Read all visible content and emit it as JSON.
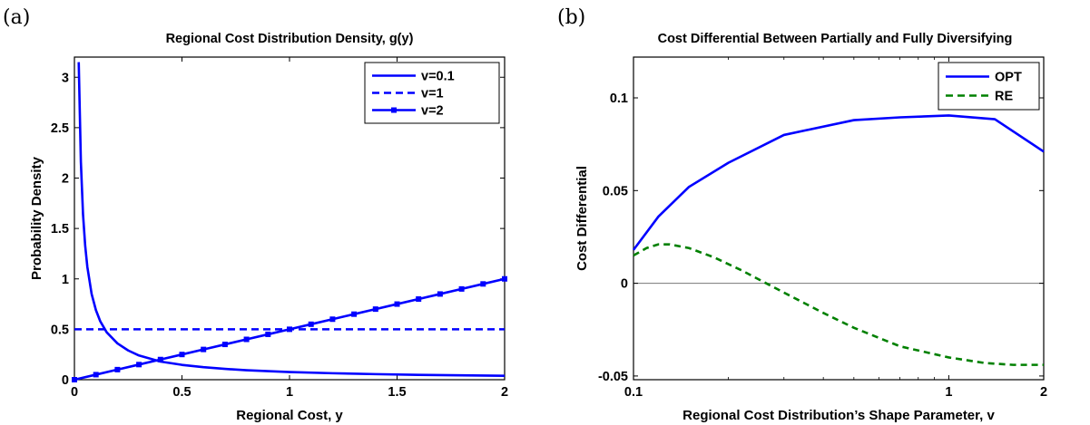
{
  "chart_data": [
    {
      "type": "line",
      "panel_label": "(a)",
      "title": "Regional Cost Distribution Density, g(y)",
      "xlabel": "Regional Cost,  y",
      "ylabel": "Probability Density",
      "xlim": [
        0,
        2
      ],
      "ylim": [
        0,
        3.2
      ],
      "xticks": [
        0,
        0.5,
        1,
        1.5,
        2
      ],
      "xtick_labels": [
        "0",
        "0.5",
        "1",
        "1.5",
        "2"
      ],
      "yticks": [
        0,
        0.5,
        1,
        1.5,
        2,
        2.5,
        3
      ],
      "ytick_labels": [
        "0",
        "0.5",
        "1",
        "1.5",
        "2",
        "2.5",
        "3"
      ],
      "grid": false,
      "legend_position": "top-right",
      "series": [
        {
          "name": "v=0.1",
          "color": "#0000ff",
          "style": "solid",
          "marker": "none",
          "x": [
            0.02,
            0.03,
            0.04,
            0.05,
            0.06,
            0.08,
            0.1,
            0.12,
            0.15,
            0.2,
            0.25,
            0.3,
            0.4,
            0.5,
            0.6,
            0.7,
            0.8,
            1.0,
            1.2,
            1.4,
            1.6,
            1.8,
            2.0
          ],
          "y": [
            3.15,
            2.16,
            1.64,
            1.33,
            1.12,
            0.85,
            0.69,
            0.58,
            0.47,
            0.36,
            0.29,
            0.24,
            0.18,
            0.147,
            0.124,
            0.107,
            0.094,
            0.076,
            0.064,
            0.055,
            0.048,
            0.043,
            0.039
          ]
        },
        {
          "name": "v=1",
          "color": "#0000ff",
          "style": "dashed",
          "marker": "none",
          "x": [
            0,
            2
          ],
          "y": [
            0.5,
            0.5
          ]
        },
        {
          "name": "v=2",
          "color": "#0000ff",
          "style": "solid",
          "marker": "square",
          "x": [
            0,
            0.1,
            0.2,
            0.3,
            0.4,
            0.5,
            0.6,
            0.7,
            0.8,
            0.9,
            1.0,
            1.1,
            1.2,
            1.3,
            1.4,
            1.5,
            1.6,
            1.7,
            1.8,
            1.9,
            2.0
          ],
          "y": [
            0,
            0.05,
            0.1,
            0.15,
            0.2,
            0.25,
            0.3,
            0.35,
            0.4,
            0.45,
            0.5,
            0.55,
            0.6,
            0.65,
            0.7,
            0.75,
            0.8,
            0.85,
            0.9,
            0.95,
            1.0
          ]
        }
      ]
    },
    {
      "type": "line",
      "panel_label": "(b)",
      "title": "Cost Differential Between Partially and Fully Diversifying",
      "xlabel": "Regional Cost Distribution’s Shape Parameter,  v",
      "ylabel": "Cost Differential",
      "xscale": "log",
      "xlim": [
        0.1,
        2
      ],
      "ylim": [
        -0.052,
        0.122
      ],
      "xticks": [
        0.1,
        1,
        2
      ],
      "xtick_labels": [
        "0.1",
        "1",
        "2"
      ],
      "yticks": [
        -0.05,
        0,
        0.05,
        0.1
      ],
      "ytick_labels": [
        "-0.05",
        "0",
        "0.05",
        "0.1"
      ],
      "grid": false,
      "zero_line": true,
      "legend_position": "top-right",
      "series": [
        {
          "name": "OPT",
          "color": "#0000ff",
          "style": "solid",
          "x": [
            0.1,
            0.12,
            0.15,
            0.2,
            0.3,
            0.5,
            0.7,
            1.0,
            1.4,
            2.0
          ],
          "y": [
            0.018,
            0.036,
            0.052,
            0.065,
            0.08,
            0.088,
            0.0895,
            0.0905,
            0.0885,
            0.071
          ]
        },
        {
          "name": "RE",
          "color": "#008000",
          "style": "dashed",
          "x": [
            0.1,
            0.11,
            0.12,
            0.13,
            0.15,
            0.18,
            0.22,
            0.3,
            0.4,
            0.5,
            0.7,
            1.0,
            1.3,
            1.6,
            2.0
          ],
          "y": [
            0.015,
            0.019,
            0.021,
            0.021,
            0.019,
            0.014,
            0.007,
            -0.005,
            -0.016,
            -0.024,
            -0.034,
            -0.04,
            -0.043,
            -0.044,
            -0.044
          ]
        }
      ]
    }
  ]
}
